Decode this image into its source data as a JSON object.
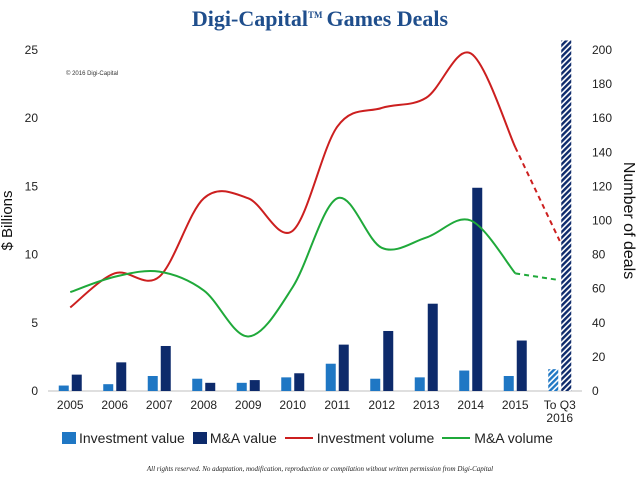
{
  "title": {
    "brand": "Digi-Capital",
    "tm": "TM",
    "rest": "Games Deals"
  },
  "copyright": "© 2016 Digi-Capital",
  "footer": "All rights reserved. No adaptation, modification, reproduction or compilation without written permission from Digi-Capital",
  "colors": {
    "investment_value": "#1f77c4",
    "ma_value": "#0d2a6b",
    "investment_volume": "#cc1f1f",
    "ma_volume": "#1fa93a"
  },
  "chart_data": {
    "type": "bar",
    "categories": [
      "2005",
      "2006",
      "2007",
      "2008",
      "2009",
      "2010",
      "2011",
      "2012",
      "2013",
      "2014",
      "2015",
      "To Q3 2016"
    ],
    "category_labels": [
      [
        "2005"
      ],
      [
        "2006"
      ],
      [
        "2007"
      ],
      [
        "2008"
      ],
      [
        "2009"
      ],
      [
        "2010"
      ],
      [
        "2011"
      ],
      [
        "2012"
      ],
      [
        "2013"
      ],
      [
        "2014"
      ],
      [
        "2015"
      ],
      [
        "To Q3",
        "2016"
      ]
    ],
    "ylabel": "$ Billions",
    "y2label": "Number of deals",
    "ylim": [
      0,
      25
    ],
    "yticks": [
      0,
      5,
      10,
      15,
      20,
      25
    ],
    "y2lim": [
      0,
      200
    ],
    "y2ticks": [
      0,
      20,
      40,
      60,
      80,
      100,
      120,
      140,
      160,
      180,
      200
    ],
    "series": [
      {
        "name": "Investment value",
        "type": "bar",
        "axis": "left",
        "values": [
          0.4,
          0.5,
          1.1,
          0.9,
          0.6,
          1.0,
          2.0,
          0.9,
          1.0,
          1.5,
          1.1,
          1.6
        ]
      },
      {
        "name": "M&A value",
        "type": "bar",
        "axis": "left",
        "values": [
          1.2,
          2.1,
          3.3,
          0.6,
          0.8,
          1.3,
          3.4,
          4.4,
          6.4,
          14.9,
          3.7,
          25.7
        ]
      },
      {
        "name": "Investment volume",
        "type": "line",
        "axis": "right",
        "values": [
          49,
          69,
          67,
          113,
          113,
          94,
          155,
          166,
          172,
          198,
          143,
          88
        ],
        "dashed_from_index": 10
      },
      {
        "name": "M&A volume",
        "type": "line",
        "axis": "right",
        "values": [
          58,
          67,
          70,
          59,
          32,
          61,
          113,
          84,
          90,
          100,
          69,
          65
        ],
        "dashed_from_index": 10
      }
    ],
    "grid": false,
    "legend": "bottom"
  }
}
